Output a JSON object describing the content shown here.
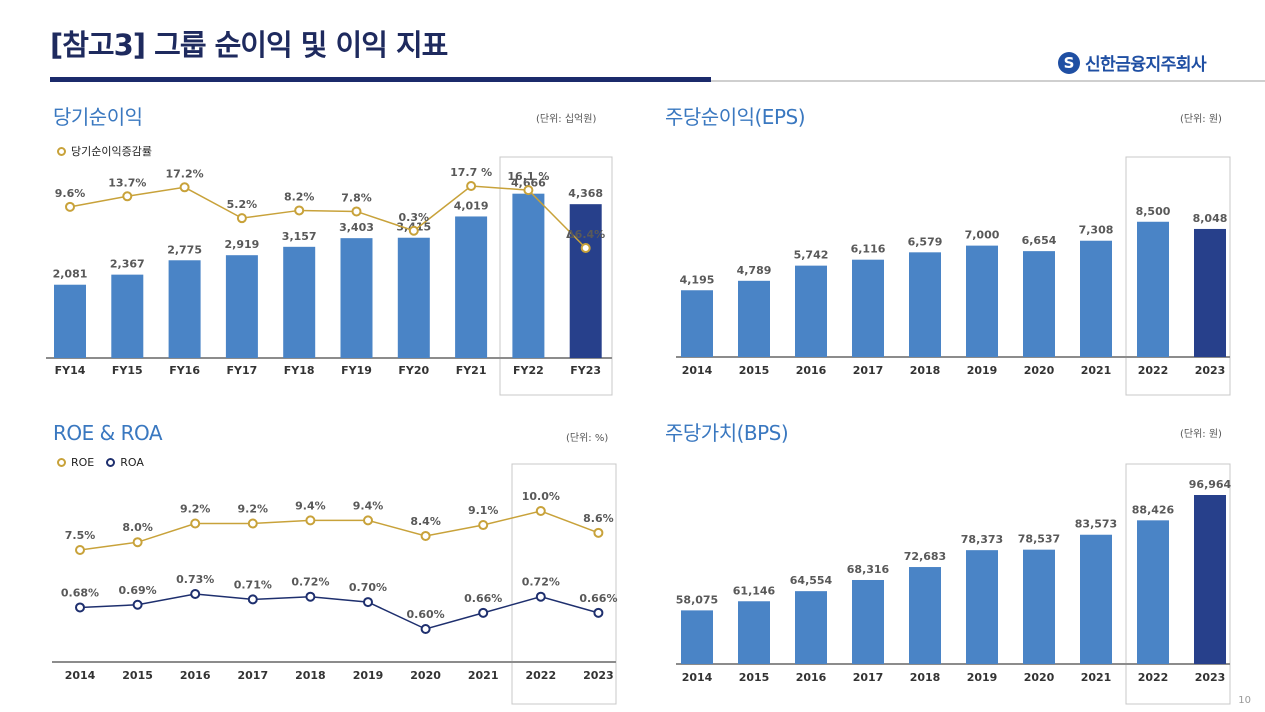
{
  "page": {
    "title": "[참고3] 그룹 순이익 및 이익 지표",
    "page_number": "10"
  },
  "logo": {
    "mark": "S",
    "text": "신한금융지주회사"
  },
  "colors": {
    "bar": "#4a84c6",
    "bar_highlight": "#27408b",
    "gold": "#c8a23a",
    "navy": "#1e2f6e",
    "label": "#595959"
  },
  "panels": {
    "net_income": {
      "title": "당기순이익",
      "unit": "(단위: 십억원)",
      "legend": "당기순이익증감률"
    },
    "eps": {
      "title": "주당순이익(EPS)",
      "unit": "(단위: 원)"
    },
    "roe_roa": {
      "title": "ROE & ROA",
      "unit": "(단위: %)",
      "legend_roe": "ROE",
      "legend_roa": "ROA"
    },
    "bps": {
      "title": "주당가치(BPS)",
      "unit": "(단위: 원)"
    }
  },
  "chart_data": [
    {
      "id": "net_income",
      "type": "bar+line",
      "title": "당기순이익",
      "categories": [
        "FY14",
        "FY15",
        "FY16",
        "FY17",
        "FY18",
        "FY19",
        "FY20",
        "FY21",
        "FY22",
        "FY23"
      ],
      "bars": {
        "name": "당기순이익",
        "values": [
          2081,
          2367,
          2775,
          2919,
          3157,
          3403,
          3415,
          4019,
          4666,
          4368
        ],
        "labels": [
          "2,081",
          "2,367",
          "2,775",
          "2,919",
          "3,157",
          "3,403",
          "3,415",
          "4,019",
          "4,666",
          "4,368"
        ]
      },
      "line": {
        "name": "당기순이익증감률",
        "values": [
          9.6,
          13.7,
          17.2,
          5.2,
          8.2,
          7.8,
          0.3,
          17.7,
          16.1,
          -6.4
        ],
        "labels": [
          "9.6%",
          "13.7%",
          "17.2%",
          "5.2%",
          "8.2%",
          "7.8%",
          "0.3%",
          "17.7 %",
          "16.1 %",
          "Δ6.4%"
        ]
      },
      "highlight_from": 8
    },
    {
      "id": "eps",
      "type": "bar",
      "title": "주당순이익(EPS)",
      "categories": [
        "2014",
        "2015",
        "2016",
        "2017",
        "2018",
        "2019",
        "2020",
        "2021",
        "2022",
        "2023"
      ],
      "values": [
        4195,
        4789,
        5742,
        6116,
        6579,
        7000,
        6654,
        7308,
        8500,
        8048
      ],
      "labels": [
        "4,195",
        "4,789",
        "5,742",
        "6,116",
        "6,579",
        "7,000",
        "6,654",
        "7,308",
        "8,500",
        "8,048"
      ],
      "highlight_from": 8
    },
    {
      "id": "roe_roa",
      "type": "line",
      "title": "ROE & ROA",
      "categories": [
        "2014",
        "2015",
        "2016",
        "2017",
        "2018",
        "2019",
        "2020",
        "2021",
        "2022",
        "2023"
      ],
      "series": [
        {
          "name": "ROE",
          "values": [
            7.5,
            8.0,
            9.2,
            9.2,
            9.4,
            9.4,
            8.4,
            9.1,
            10.0,
            8.6
          ],
          "labels": [
            "7.5%",
            "8.0%",
            "9.2%",
            "9.2%",
            "9.4%",
            "9.4%",
            "8.4%",
            "9.1%",
            "10.0%",
            "8.6%"
          ]
        },
        {
          "name": "ROA",
          "values": [
            0.68,
            0.69,
            0.73,
            0.71,
            0.72,
            0.7,
            0.6,
            0.66,
            0.72,
            0.66
          ],
          "labels": [
            "0.68%",
            "0.69%",
            "0.73%",
            "0.71%",
            "0.72%",
            "0.70%",
            "0.60%",
            "0.66%",
            "0.72%",
            "0.66%"
          ]
        }
      ],
      "highlight_from": 8
    },
    {
      "id": "bps",
      "type": "bar",
      "title": "주당가치(BPS)",
      "categories": [
        "2014",
        "2015",
        "2016",
        "2017",
        "2018",
        "2019",
        "2020",
        "2021",
        "2022",
        "2023"
      ],
      "values": [
        58075,
        61146,
        64554,
        68316,
        72683,
        78373,
        78537,
        83573,
        88426,
        96964
      ],
      "labels": [
        "58,075",
        "61,146",
        "64,554",
        "68,316",
        "72,683",
        "78,373",
        "78,537",
        "83,573",
        "88,426",
        "96,964"
      ],
      "highlight_from": 8
    }
  ]
}
